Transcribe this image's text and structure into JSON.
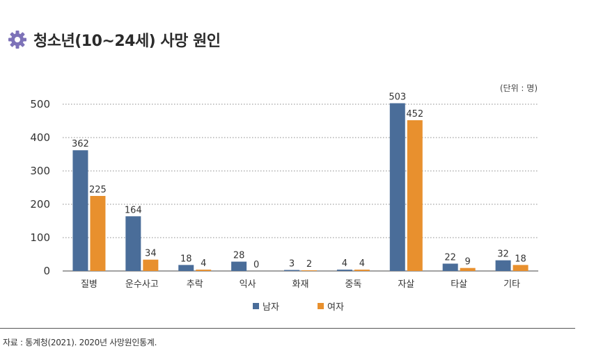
{
  "header": {
    "title": "청소년(10~24세) 사망 원인",
    "icon": "gear-icon"
  },
  "chart_data": {
    "type": "bar",
    "unit_label": "(단위 : 명)",
    "categories": [
      "질병",
      "운수사고",
      "추락",
      "익사",
      "화재",
      "중독",
      "자살",
      "타살",
      "기타"
    ],
    "series": [
      {
        "name": "남자",
        "color": "#4a6d99",
        "values": [
          362,
          164,
          18,
          28,
          3,
          4,
          503,
          22,
          32
        ]
      },
      {
        "name": "여자",
        "color": "#e8902e",
        "values": [
          225,
          34,
          4,
          0,
          2,
          4,
          452,
          9,
          18
        ]
      }
    ],
    "ylim": [
      0,
      500
    ],
    "yticks": [
      0,
      100,
      200,
      300,
      400,
      500
    ],
    "grid": true,
    "legend": "bottom-center"
  },
  "footer": {
    "source": "자료 : 통계청(2021). 2020년 사망원인통계."
  }
}
